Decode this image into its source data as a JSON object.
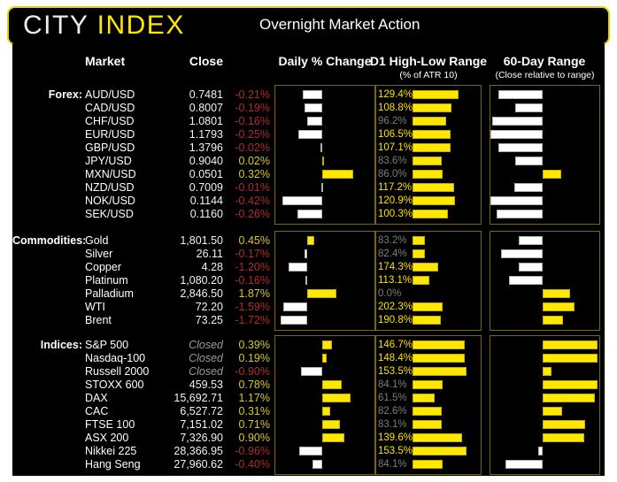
{
  "header": {
    "logo_part1": "CITY ",
    "logo_part2": "INDEX",
    "title": "Overnight Market Action"
  },
  "columns": {
    "market": "Market",
    "close": "Close",
    "daily": "Daily % Change",
    "d1": "D1 High-Low Range",
    "d1_sub": "(% of ATR 10)",
    "range60": "60-Day Range",
    "range60_sub": "(Close relative to range)"
  },
  "colors": {
    "accent_border": "#e6d400",
    "accent_logo": "#ffe600",
    "bar_yellow": "#ffe800",
    "bar_yellow_border": "#c7ac00",
    "bar_white_border": "#b0b0b0",
    "negative_red": "#b02c2c",
    "positive_yellow": "#d6cb25",
    "d1_label_yellow": "#ffe100",
    "muted_gray": "#7d7d7d",
    "closed_gray": "#9b9b9b",
    "box_border": "#7a6800",
    "panel_black": "#000000"
  },
  "chart_data": {
    "type": "bar",
    "description": "Market table with three embedded horizontal bar charts per row: daily % change (diverging from zero axis), D1 high-low range as % of ATR10, and close position within 60-day range (bar drawn from 50% midpoint to close percentile; yellow above midpoint, white below)",
    "sections": [
      {
        "id": "forex",
        "label": "Forex:",
        "axes": {
          "daily_zero_frac": 0.476,
          "daily_frac_per_pct": 0.96,
          "d1_axis_max_pct": 190,
          "range60_mid_pct": 48
        },
        "rows": [
          {
            "market": "AUD/USD",
            "close": "0.7481",
            "daily_pct": -0.21,
            "daily_label": "-0.21%",
            "d1_pct": 129.4,
            "d1_label": "129.4%",
            "range60_pct": 7
          },
          {
            "market": "CAD/USD",
            "close": "0.8007",
            "daily_pct": -0.19,
            "daily_label": "-0.19%",
            "d1_pct": 108.8,
            "d1_label": "108.8%",
            "range60_pct": 23
          },
          {
            "market": "CHF/USD",
            "close": "1.0801",
            "daily_pct": -0.16,
            "daily_label": "-0.16%",
            "d1_pct": 96.2,
            "d1_label": "96.2%",
            "range60_pct": 2
          },
          {
            "market": "EUR/USD",
            "close": "1.1793",
            "daily_pct": -0.25,
            "daily_label": "-0.25%",
            "d1_pct": 106.5,
            "d1_label": "106.5%",
            "range60_pct": 0
          },
          {
            "market": "GBP/USD",
            "close": "1.3796",
            "daily_pct": -0.02,
            "daily_label": "-0.02%",
            "d1_pct": 107.1,
            "d1_label": "107.1%",
            "range60_pct": 7
          },
          {
            "market": "JPY/USD",
            "close": "0.9040",
            "daily_pct": 0.02,
            "daily_label": "0.02%",
            "d1_pct": 83.6,
            "d1_label": "83.6%",
            "range60_pct": 23
          },
          {
            "market": "MXN/USD",
            "close": "0.0501",
            "daily_pct": 0.32,
            "daily_label": "0.32%",
            "d1_pct": 86.0,
            "d1_label": "86.0%",
            "range60_pct": 65
          },
          {
            "market": "NZD/USD",
            "close": "0.7009",
            "daily_pct": -0.01,
            "daily_label": "-0.01%",
            "d1_pct": 117.2,
            "d1_label": "117.2%",
            "range60_pct": 22
          },
          {
            "market": "NOK/USD",
            "close": "0.1144",
            "daily_pct": -0.42,
            "daily_label": "-0.42%",
            "d1_pct": 120.9,
            "d1_label": "120.9%",
            "range60_pct": 0
          },
          {
            "market": "SEK/USD",
            "close": "0.1160",
            "daily_pct": -0.26,
            "daily_label": "-0.26%",
            "d1_pct": 100.3,
            "d1_label": "100.3%",
            "range60_pct": 6
          }
        ]
      },
      {
        "id": "commodities",
        "label": "Commodities:",
        "axes": {
          "daily_zero_frac": 0.325,
          "daily_frac_per_pct": 0.156,
          "d1_axis_max_pct": 452,
          "range60_mid_pct": 48
        },
        "rows": [
          {
            "market": "Gold",
            "close": "1,801.50",
            "daily_pct": 0.45,
            "daily_label": "0.45%",
            "d1_pct": 83.2,
            "d1_label": "83.2%",
            "range60_pct": 26
          },
          {
            "market": "Silver",
            "close": "26.11",
            "daily_pct": -0.17,
            "daily_label": "-0.17%",
            "d1_pct": 82.4,
            "d1_label": "82.4%",
            "range60_pct": 10
          },
          {
            "market": "Copper",
            "close": "4.28",
            "daily_pct": -1.2,
            "daily_label": "-1.20%",
            "d1_pct": 174.3,
            "d1_label": "174.3%",
            "range60_pct": 26
          },
          {
            "market": "Platinum",
            "close": "1,080.20",
            "daily_pct": -0.16,
            "daily_label": "-0.16%",
            "d1_pct": 113.1,
            "d1_label": "113.1%",
            "range60_pct": 17
          },
          {
            "market": "Palladium",
            "close": "2,846.50",
            "daily_pct": 1.87,
            "daily_label": "1.87%",
            "d1_pct": 0.0,
            "d1_label": "0.0%",
            "range60_pct": 73
          },
          {
            "market": "WTI",
            "close": "72.20",
            "daily_pct": -1.59,
            "daily_label": "-1.59%",
            "d1_pct": 202.3,
            "d1_label": "202.3%",
            "range60_pct": 77
          },
          {
            "market": "Brent",
            "close": "73.25",
            "daily_pct": -1.72,
            "daily_label": "-1.72%",
            "d1_pct": 190.8,
            "d1_label": "190.8%",
            "range60_pct": 67
          }
        ]
      },
      {
        "id": "indices",
        "label": "Indices:",
        "axes": {
          "daily_zero_frac": 0.475,
          "daily_frac_per_pct": 0.245,
          "d1_axis_max_pct": 190,
          "range60_mid_pct": 48
        },
        "rows": [
          {
            "market": "S&P 500",
            "close": "Closed",
            "closed": true,
            "daily_pct": 0.39,
            "daily_label": "0.39%",
            "d1_pct": 146.7,
            "d1_label": "146.7%",
            "range60_pct": 98
          },
          {
            "market": "Nasdaq-100",
            "close": "Closed",
            "closed": true,
            "daily_pct": 0.19,
            "daily_label": "0.19%",
            "d1_pct": 148.4,
            "d1_label": "148.4%",
            "range60_pct": 98
          },
          {
            "market": "Russell 2000",
            "close": "Closed",
            "closed": true,
            "daily_pct": -0.9,
            "daily_label": "-0.90%",
            "d1_pct": 153.5,
            "d1_label": "153.5%",
            "range60_pct": 56
          },
          {
            "market": "STOXX 600",
            "close": "459.53",
            "daily_pct": 0.78,
            "daily_label": "0.78%",
            "d1_pct": 84.1,
            "d1_label": "84.1%",
            "range60_pct": 98
          },
          {
            "market": "DAX",
            "close": "15,692.71",
            "daily_pct": 1.17,
            "daily_label": "1.17%",
            "d1_pct": 61.5,
            "d1_label": "61.5%",
            "range60_pct": 96
          },
          {
            "market": "CAC",
            "close": "6,527.72",
            "daily_pct": 0.31,
            "daily_label": "0.31%",
            "d1_pct": 82.6,
            "d1_label": "82.6%",
            "range60_pct": 66
          },
          {
            "market": "FTSE 100",
            "close": "7,151.02",
            "daily_pct": 0.71,
            "daily_label": "0.71%",
            "d1_pct": 83.1,
            "d1_label": "83.1%",
            "range60_pct": 87
          },
          {
            "market": "ASX 200",
            "close": "7,326.90",
            "daily_pct": 0.9,
            "daily_label": "0.90%",
            "d1_pct": 139.6,
            "d1_label": "139.6%",
            "range60_pct": 86
          },
          {
            "market": "Nikkei 225",
            "close": "28,366.95",
            "daily_pct": -0.96,
            "daily_label": "-0.96%",
            "d1_pct": 153.5,
            "d1_label": "153.5%",
            "range60_pct": 44
          },
          {
            "market": "Hang Seng",
            "close": "27,960.62",
            "daily_pct": -0.4,
            "daily_label": "-0.40%",
            "d1_pct": 84.1,
            "d1_label": "84.1%",
            "range60_pct": 14
          }
        ]
      }
    ]
  }
}
